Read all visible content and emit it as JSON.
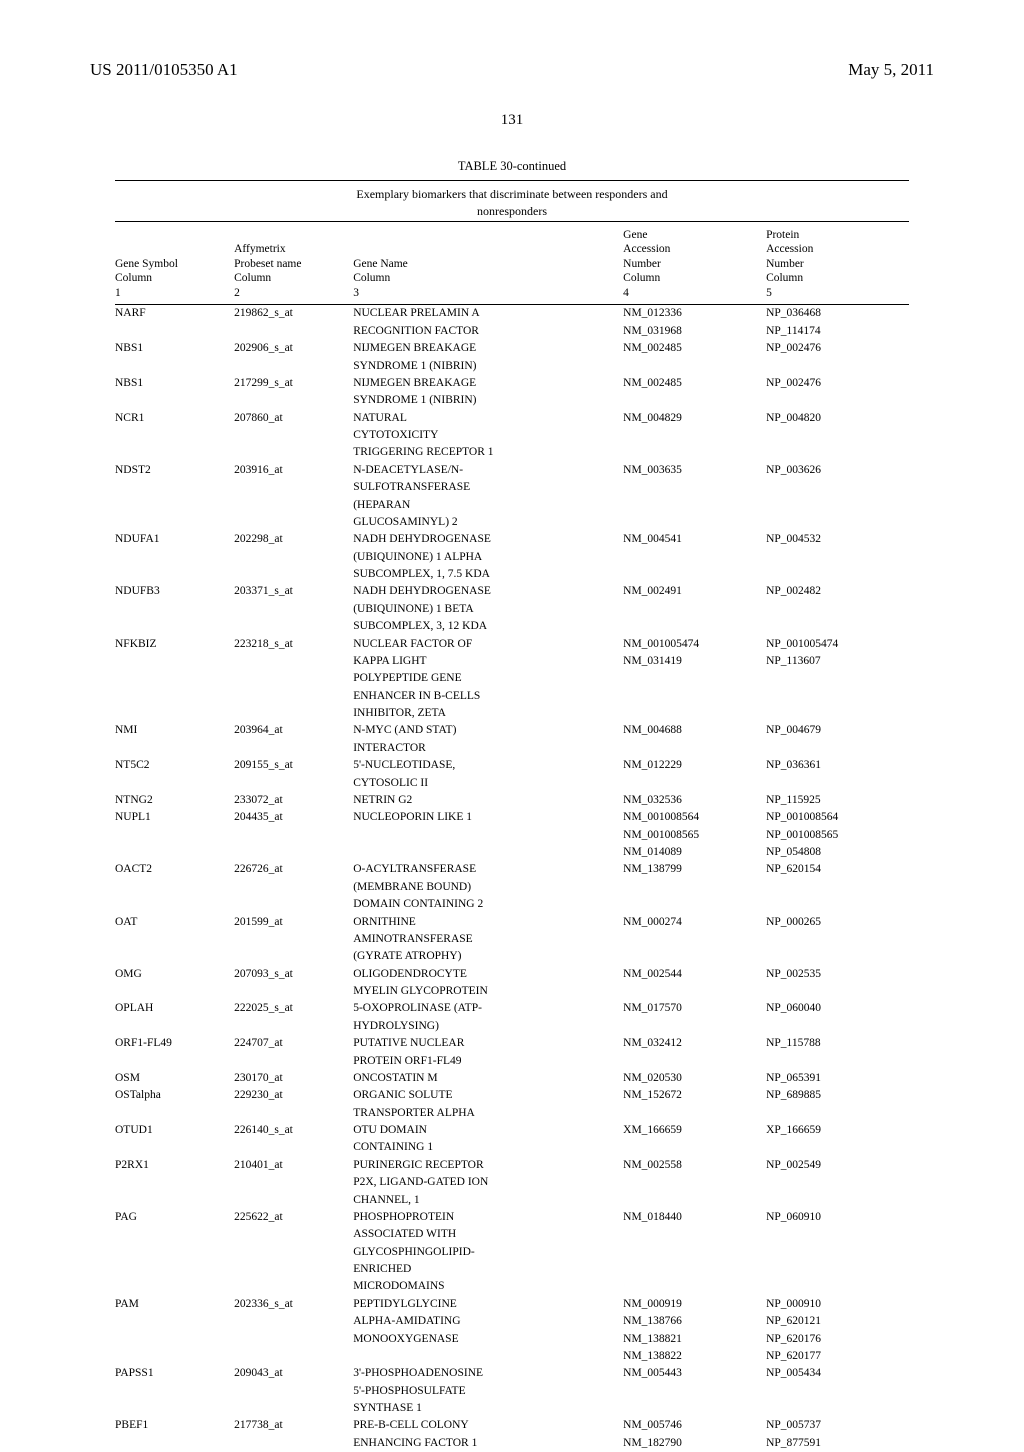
{
  "header": {
    "pub_number": "US 2011/0105350 A1",
    "date": "May 5, 2011"
  },
  "page_number": "131",
  "table": {
    "title": "TABLE 30-continued",
    "caption_line1": "Exemplary biomarkers that discriminate between responders and",
    "caption_line2": "nonresponders",
    "columns": [
      {
        "h1": "Gene Symbol",
        "h2": "Column",
        "h3": "1",
        "h0": ""
      },
      {
        "h1": "Probeset name",
        "h2": "Column",
        "h3": "2",
        "h0": "Affymetrix"
      },
      {
        "h1": "Gene Name",
        "h2": "Column",
        "h3": "3",
        "h0": ""
      },
      {
        "h1": "Accession",
        "h2": "Number",
        "h3": "Column",
        "h4": "4",
        "h0": "Gene"
      },
      {
        "h1": "Accession",
        "h2": "Number",
        "h3": "Column",
        "h4": "5",
        "h0": "Protein"
      }
    ],
    "rows": [
      {
        "sym": "NARF",
        "probe": "219862_s_at",
        "name": [
          "NUCLEAR PRELAMIN A",
          "RECOGNITION FACTOR"
        ],
        "gene": [
          "NM_012336",
          "NM_031968"
        ],
        "prot": [
          "NP_036468",
          "NP_114174"
        ]
      },
      {
        "sym": "NBS1",
        "probe": "202906_s_at",
        "name": [
          "NIJMEGEN BREAKAGE",
          "SYNDROME 1 (NIBRIN)"
        ],
        "gene": [
          "NM_002485"
        ],
        "prot": [
          "NP_002476"
        ]
      },
      {
        "sym": "NBS1",
        "probe": "217299_s_at",
        "name": [
          "NIJMEGEN BREAKAGE",
          "SYNDROME 1 (NIBRIN)"
        ],
        "gene": [
          "NM_002485"
        ],
        "prot": [
          "NP_002476"
        ]
      },
      {
        "sym": "NCR1",
        "probe": "207860_at",
        "name": [
          "NATURAL",
          "CYTOTOXICITY",
          "TRIGGERING RECEPTOR 1"
        ],
        "gene": [
          "NM_004829"
        ],
        "prot": [
          "NP_004820"
        ]
      },
      {
        "sym": "NDST2",
        "probe": "203916_at",
        "name": [
          "N-DEACETYLASE/N-",
          "SULFOTRANSFERASE",
          "(HEPARAN",
          "GLUCOSAMINYL) 2"
        ],
        "gene": [
          "NM_003635"
        ],
        "prot": [
          "NP_003626"
        ]
      },
      {
        "sym": "NDUFA1",
        "probe": "202298_at",
        "name": [
          "NADH DEHYDROGENASE",
          "(UBIQUINONE) 1 ALPHA",
          "SUBCOMPLEX, 1, 7.5 KDA"
        ],
        "gene": [
          "NM_004541"
        ],
        "prot": [
          "NP_004532"
        ]
      },
      {
        "sym": "NDUFB3",
        "probe": "203371_s_at",
        "name": [
          "NADH DEHYDROGENASE",
          "(UBIQUINONE) 1 BETA",
          "SUBCOMPLEX, 3, 12 KDA"
        ],
        "gene": [
          "NM_002491"
        ],
        "prot": [
          "NP_002482"
        ]
      },
      {
        "sym": "NFKBIZ",
        "probe": "223218_s_at",
        "name": [
          "NUCLEAR FACTOR OF",
          "KAPPA LIGHT",
          "POLYPEPTIDE GENE",
          "ENHANCER IN B-CELLS",
          "INHIBITOR, ZETA"
        ],
        "gene": [
          "NM_001005474",
          "NM_031419"
        ],
        "prot": [
          "NP_001005474",
          "NP_113607"
        ]
      },
      {
        "sym": "NMI",
        "probe": "203964_at",
        "name": [
          "N-MYC (AND STAT)",
          "INTERACTOR"
        ],
        "gene": [
          "NM_004688"
        ],
        "prot": [
          "NP_004679"
        ]
      },
      {
        "sym": "NT5C2",
        "probe": "209155_s_at",
        "name": [
          "5'-NUCLEOTIDASE,",
          "CYTOSOLIC II"
        ],
        "gene": [
          "NM_012229"
        ],
        "prot": [
          "NP_036361"
        ]
      },
      {
        "sym": "NTNG2",
        "probe": "233072_at",
        "name": [
          "NETRIN G2"
        ],
        "gene": [
          "NM_032536"
        ],
        "prot": [
          "NP_115925"
        ]
      },
      {
        "sym": "NUPL1",
        "probe": "204435_at",
        "name": [
          "NUCLEOPORIN LIKE 1"
        ],
        "gene": [
          "NM_001008564",
          "NM_001008565",
          "NM_014089"
        ],
        "prot": [
          "NP_001008564",
          "NP_001008565",
          "NP_054808"
        ]
      },
      {
        "sym": "OACT2",
        "probe": "226726_at",
        "name": [
          "O-ACYLTRANSFERASE",
          "(MEMBRANE BOUND)",
          "DOMAIN CONTAINING 2"
        ],
        "gene": [
          "NM_138799"
        ],
        "prot": [
          "NP_620154"
        ]
      },
      {
        "sym": "OAT",
        "probe": "201599_at",
        "name": [
          "ORNITHINE",
          "AMINOTRANSFERASE",
          "(GYRATE ATROPHY)"
        ],
        "gene": [
          "NM_000274"
        ],
        "prot": [
          "NP_000265"
        ]
      },
      {
        "sym": "OMG",
        "probe": "207093_s_at",
        "name": [
          "OLIGODENDROCYTE",
          "MYELIN GLYCOPROTEIN"
        ],
        "gene": [
          "NM_002544"
        ],
        "prot": [
          "NP_002535"
        ]
      },
      {
        "sym": "OPLAH",
        "probe": "222025_s_at",
        "name": [
          "5-OXOPROLINASE (ATP-",
          "HYDROLYSING)"
        ],
        "gene": [
          "NM_017570"
        ],
        "prot": [
          "NP_060040"
        ]
      },
      {
        "sym": "ORF1-FL49",
        "probe": "224707_at",
        "name": [
          "PUTATIVE NUCLEAR",
          "PROTEIN ORF1-FL49"
        ],
        "gene": [
          "NM_032412"
        ],
        "prot": [
          "NP_115788"
        ]
      },
      {
        "sym": "OSM",
        "probe": "230170_at",
        "name": [
          "ONCOSTATIN M"
        ],
        "gene": [
          "NM_020530"
        ],
        "prot": [
          "NP_065391"
        ]
      },
      {
        "sym": "OSTalpha",
        "probe": "229230_at",
        "name": [
          "ORGANIC SOLUTE",
          "TRANSPORTER ALPHA"
        ],
        "gene": [
          "NM_152672"
        ],
        "prot": [
          "NP_689885"
        ]
      },
      {
        "sym": "OTUD1",
        "probe": "226140_s_at",
        "name": [
          "OTU DOMAIN",
          "CONTAINING 1"
        ],
        "gene": [
          "XM_166659"
        ],
        "prot": [
          "XP_166659"
        ]
      },
      {
        "sym": "P2RX1",
        "probe": "210401_at",
        "name": [
          "PURINERGIC RECEPTOR",
          "P2X, LIGAND-GATED ION",
          "CHANNEL, 1"
        ],
        "gene": [
          "NM_002558"
        ],
        "prot": [
          "NP_002549"
        ]
      },
      {
        "sym": "PAG",
        "probe": "225622_at",
        "name": [
          "PHOSPHOPROTEIN",
          "ASSOCIATED WITH",
          "GLYCOSPHINGOLIPID-",
          "ENRICHED",
          "MICRODOMAINS"
        ],
        "gene": [
          "NM_018440"
        ],
        "prot": [
          "NP_060910"
        ]
      },
      {
        "sym": "PAM",
        "probe": "202336_s_at",
        "name": [
          "PEPTIDYLGLYCINE",
          "ALPHA-AMIDATING",
          "MONOOXYGENASE"
        ],
        "gene": [
          "NM_000919",
          "NM_138766",
          "NM_138821",
          "NM_138822"
        ],
        "prot": [
          "NP_000910",
          "NP_620121",
          "NP_620176",
          "NP_620177"
        ]
      },
      {
        "sym": "PAPSS1",
        "probe": "209043_at",
        "name": [
          "3'-PHOSPHOADENOSINE",
          "5'-PHOSPHOSULFATE",
          "SYNTHASE 1"
        ],
        "gene": [
          "NM_005443"
        ],
        "prot": [
          "NP_005434"
        ]
      },
      {
        "sym": "PBEF1",
        "probe": "217738_at",
        "name": [
          "PRE-B-CELL COLONY",
          "ENHANCING FACTOR 1"
        ],
        "gene": [
          "NM_005746",
          "NM_182790"
        ],
        "prot": [
          "NP_005737",
          "NP_877591"
        ]
      }
    ]
  }
}
